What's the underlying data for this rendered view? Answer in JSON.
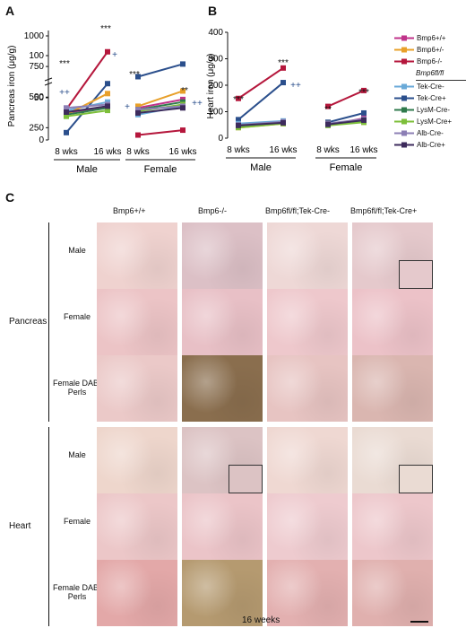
{
  "panels": {
    "a": "A",
    "b": "B",
    "c": "C"
  },
  "chart_data": [
    {
      "id": "A",
      "type": "line",
      "ylabel": "Pancreas iron (μg/g)",
      "y_ticks_upper": [
        "1000",
        "750",
        "500",
        "250"
      ],
      "y_ticks_lower": [
        "100",
        "50",
        "0"
      ],
      "x_tick_labels": [
        "8 wks",
        "16 wks",
        "8 wks",
        "16 wks"
      ],
      "groups": [
        "Male",
        "Female"
      ],
      "series": [
        {
          "name": "Bmp6-/-",
          "color": "#b5173c",
          "values": [
            400,
            870,
            190,
            230
          ]
        },
        {
          "name": "Tek-Cre+",
          "color": "#2b4f8c",
          "values": [
            210,
            610,
            75,
            90
          ]
        },
        {
          "name": "Tek-Cre-",
          "color": "#6aaad8",
          "values": [
            35,
            45,
            30,
            40
          ]
        },
        {
          "name": "Bmp6+/+",
          "color": "#c0338a",
          "values": [
            32,
            40,
            38,
            48
          ]
        },
        {
          "name": "Bmp6+/-",
          "color": "#e8a02a",
          "values": [
            30,
            55,
            40,
            58
          ]
        },
        {
          "name": "LysM-Cre-",
          "color": "#2f7a4c",
          "values": [
            30,
            38,
            36,
            45
          ]
        },
        {
          "name": "LysM-Cre+",
          "color": "#7dbf3a",
          "values": [
            28,
            35,
            34,
            42
          ]
        },
        {
          "name": "Alb-Cre-",
          "color": "#8c7fb5",
          "values": [
            38,
            42,
            36,
            40
          ]
        },
        {
          "name": "Alb-Cre+",
          "color": "#3d2b5c",
          "values": [
            33,
            40,
            32,
            38
          ]
        }
      ],
      "annotations": [
        "***",
        "***",
        "***",
        "**",
        "++",
        "+",
        "+",
        "++"
      ]
    },
    {
      "id": "B",
      "type": "line",
      "ylabel": "Heart iron (μg/g)",
      "y_ticks": [
        "400",
        "300",
        "200",
        "100",
        "0"
      ],
      "ylim": [
        0,
        400
      ],
      "x_tick_labels": [
        "8 wks",
        "16 wks",
        "8 wks",
        "16 wks"
      ],
      "groups": [
        "Male",
        "Female"
      ],
      "series": [
        {
          "name": "Bmp6-/-",
          "color": "#b5173c",
          "values": [
            150,
            265,
            120,
            180
          ]
        },
        {
          "name": "Tek-Cre+",
          "color": "#2b4f8c",
          "values": [
            70,
            210,
            60,
            95
          ]
        },
        {
          "name": "Tek-Cre-",
          "color": "#6aaad8",
          "values": [
            55,
            65,
            55,
            70
          ]
        },
        {
          "name": "Bmp6+/+",
          "color": "#c0338a",
          "values": [
            45,
            60,
            50,
            75
          ]
        },
        {
          "name": "Bmp6+/-",
          "color": "#e8a02a",
          "values": [
            40,
            55,
            55,
            60
          ]
        },
        {
          "name": "LysM-Cre-",
          "color": "#2f7a4c",
          "values": [
            45,
            60,
            50,
            65
          ]
        },
        {
          "name": "LysM-Cre+",
          "color": "#7dbf3a",
          "values": [
            40,
            55,
            48,
            60
          ]
        },
        {
          "name": "Alb-Cre-",
          "color": "#8c7fb5",
          "values": [
            50,
            62,
            55,
            72
          ]
        },
        {
          "name": "Alb-Cre+",
          "color": "#3d2b5c",
          "values": [
            48,
            58,
            52,
            68
          ]
        }
      ],
      "annotations": [
        "***",
        "***",
        "**",
        "***",
        "++"
      ]
    }
  ],
  "legend": {
    "top": [
      {
        "label": "Bmp6+/+",
        "color": "#c0338a"
      },
      {
        "label": "Bmp6+/-",
        "color": "#e8a02a"
      },
      {
        "label": "Bmp6-/-",
        "color": "#b5173c"
      }
    ],
    "header": "Bmp6fl/fl",
    "bottom": [
      {
        "label": "Tek-Cre-",
        "color": "#6aaad8"
      },
      {
        "label": "Tek-Cre+",
        "color": "#2b4f8c"
      },
      {
        "label": "LysM-Cre-",
        "color": "#2f7a4c"
      },
      {
        "label": "LysM-Cre+",
        "color": "#7dbf3a"
      },
      {
        "label": "Alb-Cre-",
        "color": "#8c7fb5"
      },
      {
        "label": "Alb-Cre+",
        "color": "#3d2b5c"
      }
    ]
  },
  "histology": {
    "columns": [
      "Bmp6+/+",
      "Bmp6-/-",
      "Bmp6fl/fl;Tek-Cre-",
      "Bmp6fl/fl;Tek-Cre+"
    ],
    "tissues": [
      {
        "name": "Pancreas",
        "rows": [
          "Male",
          "Female",
          "Female DAB-Perls"
        ]
      },
      {
        "name": "Heart",
        "rows": [
          "Male",
          "Female",
          "Female DAB-Perls"
        ]
      }
    ],
    "footer": "16 weeks"
  }
}
